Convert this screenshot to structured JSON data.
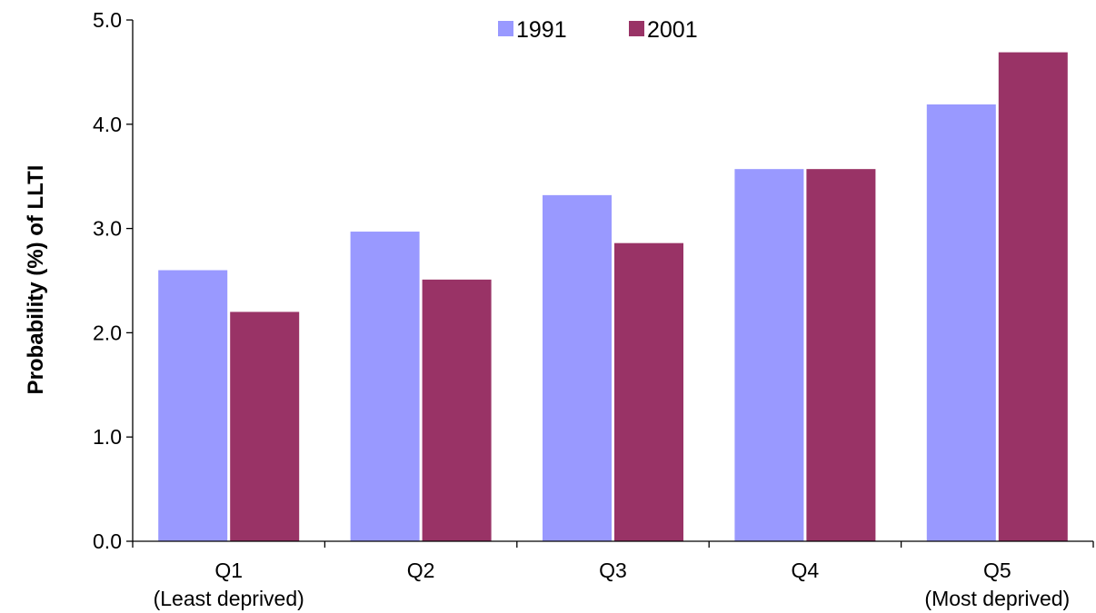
{
  "chart_data": {
    "type": "bar",
    "categories": [
      "Q1",
      "Q2",
      "Q3",
      "Q4",
      "Q5"
    ],
    "category_sublabels": [
      "(Least deprived)",
      "",
      "",
      "",
      "(Most deprived)"
    ],
    "series": [
      {
        "name": "1991",
        "color": "#9999ff",
        "values": [
          2.6,
          2.97,
          3.32,
          3.57,
          4.19
        ]
      },
      {
        "name": "2001",
        "color": "#993366",
        "values": [
          2.2,
          2.51,
          2.86,
          3.57,
          4.69
        ]
      }
    ],
    "title": "",
    "xlabel": "",
    "ylabel": "Probability (%) of LLTI",
    "ylim": [
      0,
      5
    ],
    "yticks": [
      "0.0",
      "1.0",
      "2.0",
      "3.0",
      "4.0",
      "5.0"
    ],
    "grid": false,
    "legend_position": "top-center"
  }
}
